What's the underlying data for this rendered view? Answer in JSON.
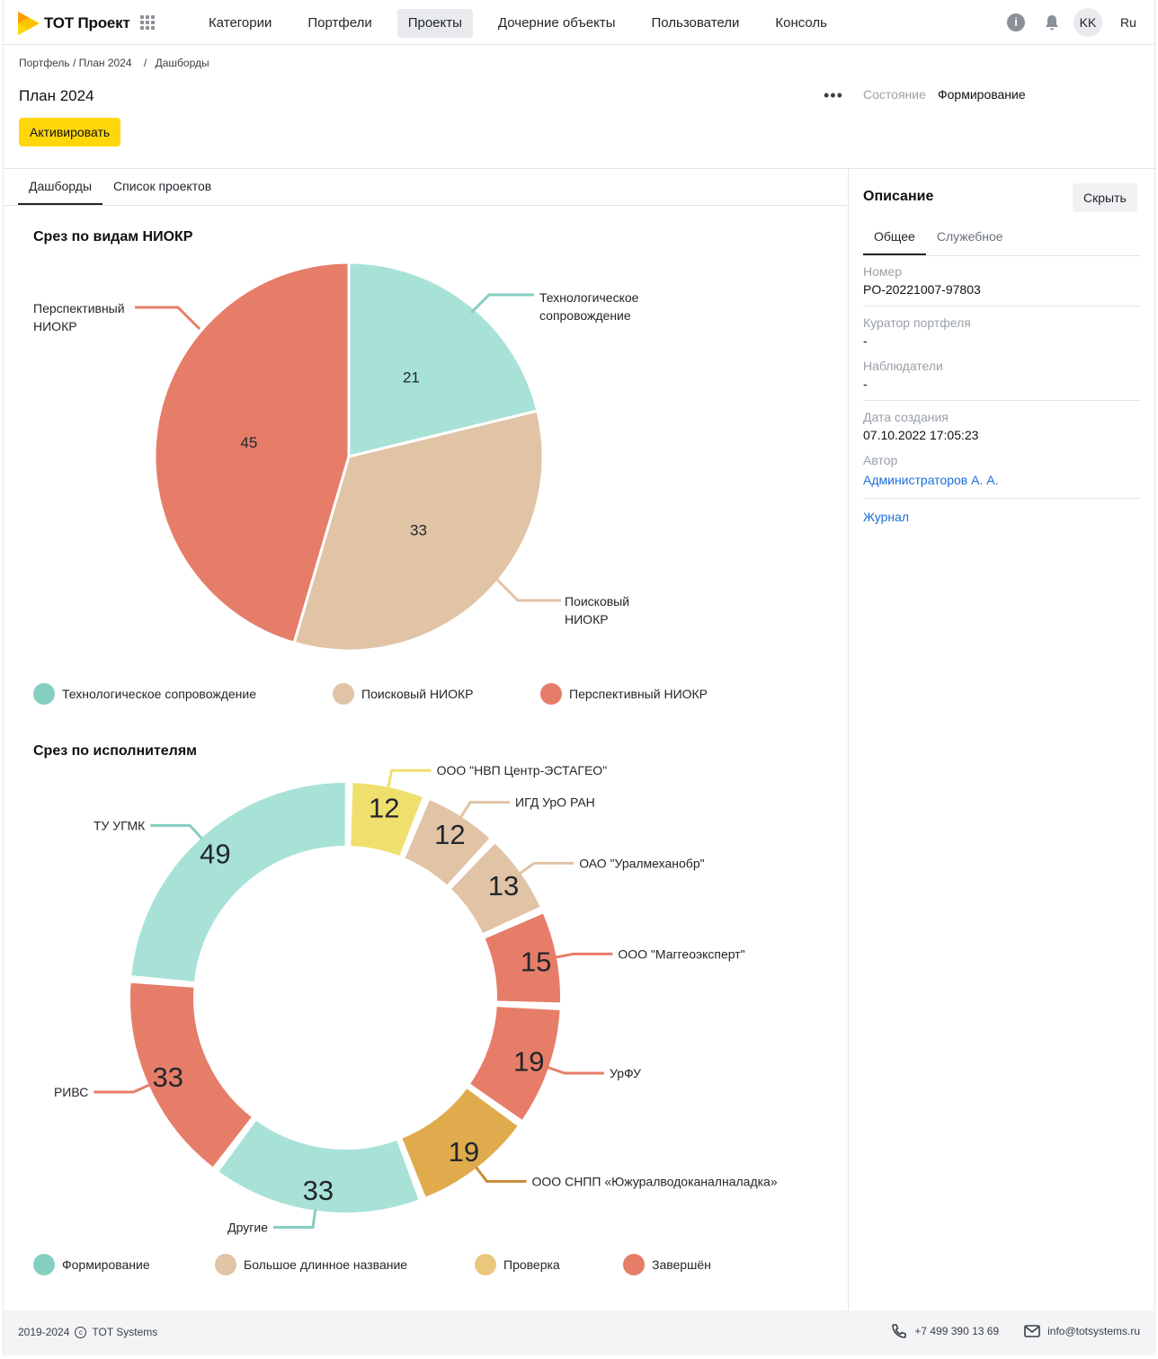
{
  "app": {
    "logo_text": "ТОТ Проект"
  },
  "nav": [
    {
      "label": "Категории",
      "active": false
    },
    {
      "label": "Портфели",
      "active": false
    },
    {
      "label": "Проекты",
      "active": true
    },
    {
      "label": "Дочерние объекты",
      "active": false
    },
    {
      "label": "Пользователи",
      "active": false
    },
    {
      "label": "Консоль",
      "active": false
    }
  ],
  "user": {
    "initials": "KK",
    "language": "Ru"
  },
  "breadcrumb": {
    "part1": "Портфель / План 2024",
    "sep": "/",
    "part2": "Дашборды"
  },
  "page": {
    "title": "План 2024",
    "activate_label": "Активировать",
    "state_label": "Состояние",
    "state_value": "Формирование"
  },
  "tabs": [
    {
      "label": "Дашборды",
      "active": true
    },
    {
      "label": "Список проектов",
      "active": false
    }
  ],
  "colors": {
    "teal": "#a8e2d7",
    "teal_dark": "#84cfc0",
    "beige": "#e1c3a6",
    "red": "#e67d69",
    "yellow": "#efe06e",
    "gold": "#dfab4d",
    "accent": "#ffd60a",
    "link": "#1a6fd8"
  },
  "charts": {
    "pie_title": "Срез по видам НИОКР",
    "donut_title": "Срез по исполнителям",
    "pie_labels": {
      "tech_1": "Технологическое",
      "tech_2": "сопровождение",
      "persp_1": "Перспективный",
      "persp_2": "НИОКР",
      "search_1": "Поисковый",
      "search_2": "НИОКР"
    },
    "pie_legend": [
      "Технологическое сопровождение",
      "Поисковый НИОКР",
      "Перспективный НИОКР"
    ],
    "donut_legend": [
      "Формирование",
      "Большое длинное название",
      "Проверка",
      "Завершён"
    ]
  },
  "chart_data": [
    {
      "type": "pie",
      "title": "Срез по видам НИОКР",
      "categories": [
        "Технологическое сопровождение",
        "Поисковый НИОКР",
        "Перспективный НИОКР"
      ],
      "values": [
        21,
        33,
        45
      ],
      "colors": [
        "#a8e2d7",
        "#e1c3a6",
        "#e67d69"
      ],
      "legend": "bottom"
    },
    {
      "type": "pie",
      "title": "Срез по исполнителям",
      "categories": [
        "ООО   \"НВП Центр-ЭСТАГЕО\"",
        "ИГД УрО   РАН",
        "ОАО   \"Уралмеханобр\"",
        "ООО \"Маггеоэксперт\"",
        "УрФУ",
        "ООО СНПП «Южуралводоканалналадка»",
        "Другие",
        "РИВС",
        "ТУ УГМК"
      ],
      "values": [
        12,
        12,
        13,
        15,
        19,
        19,
        33,
        33,
        49
      ],
      "colors": [
        "#efe06e",
        "#e1c3a6",
        "#e1c3a6",
        "#e67d69",
        "#e67d69",
        "#dfab4d",
        "#a8e2d7",
        "#e67d69",
        "#a8e2d7"
      ],
      "legend_entries": [
        "Формирование",
        "Большое длинное название",
        "Проверка",
        "Завершён"
      ],
      "legend": "bottom"
    }
  ],
  "panel": {
    "title": "Описание",
    "hide_label": "Скрыть",
    "tabs": [
      {
        "label": "Общее",
        "active": true
      },
      {
        "label": "Служебное",
        "active": false
      }
    ],
    "number_label": "Номер",
    "number_value": "PO-20221007-97803",
    "curator_label": "Куратор портфеля",
    "curator_value": "-",
    "observers_label": "Наблюдатели",
    "observers_value": "-",
    "created_label": "Дата создания",
    "created_value": "07.10.2022 17:05:23",
    "author_label": "Автор",
    "author_value": "Администраторов А. А.",
    "journal_label": "Журнал"
  },
  "footer": {
    "years": "2019-2024",
    "company": "TOT Systems",
    "phone": "+7 499 390 13 69",
    "email": "info@totsystems.ru"
  }
}
